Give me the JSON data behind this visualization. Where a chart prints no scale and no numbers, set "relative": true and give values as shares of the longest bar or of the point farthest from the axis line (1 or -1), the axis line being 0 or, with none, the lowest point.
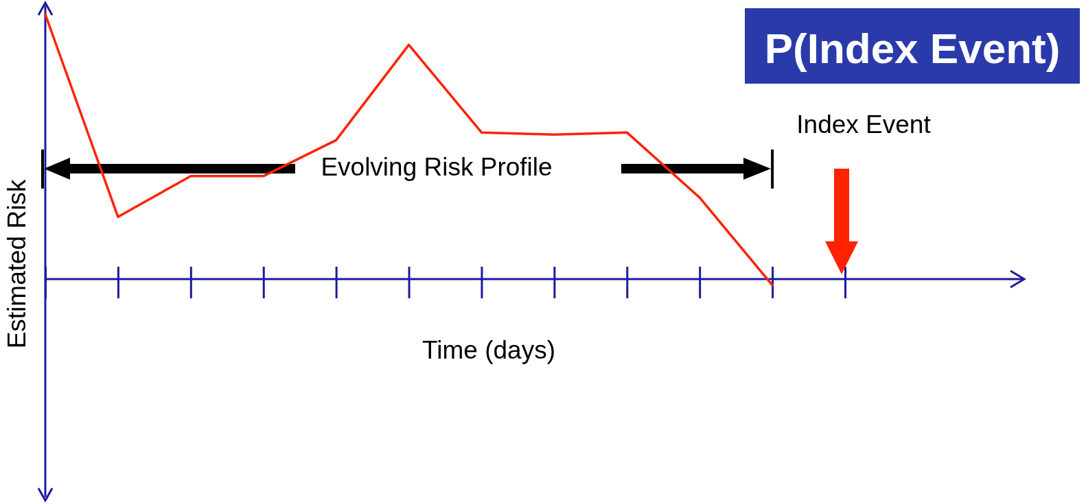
{
  "chart_data": {
    "type": "line",
    "relative": true,
    "title": "P(Index Event)",
    "xlabel": "Time (days)",
    "ylabel": "Estimated Risk",
    "categories": [
      null,
      null,
      null,
      null,
      null,
      null,
      null,
      null,
      null,
      null,
      null,
      null
    ],
    "values": [
      1,
      0.235,
      0.389,
      0.389,
      0.525,
      0.885,
      0.554,
      0.546,
      0.554,
      0.308,
      -0.023,
      null
    ],
    "color": "#ff2200",
    "ref_lines": [
      {
        "axis": "y",
        "value": 0,
        "color": "#1a1aa0"
      }
    ],
    "annotations": [
      "Evolving Risk Profile",
      "Index Event"
    ]
  }
}
